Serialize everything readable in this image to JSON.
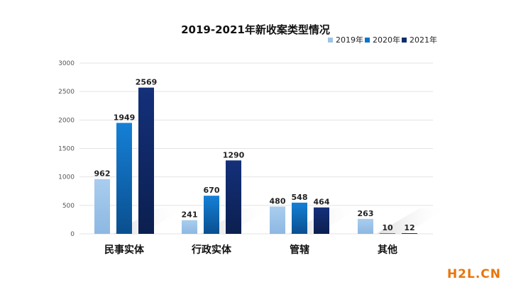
{
  "chart_data": {
    "type": "bar",
    "title": "2019-2021年新收案类型情况",
    "categories": [
      "民事实体",
      "行政实体",
      "管辖",
      "其他"
    ],
    "series": [
      {
        "name": "2019年",
        "values": [
          962,
          241,
          480,
          263
        ],
        "color": "#9dc3e6"
      },
      {
        "name": "2020年",
        "values": [
          1949,
          670,
          548,
          10
        ],
        "color": "#0d74c9"
      },
      {
        "name": "2021年",
        "values": [
          2569,
          1290,
          464,
          12
        ],
        "color": "#0f2d6b"
      }
    ],
    "ylim": [
      0,
      3000
    ],
    "yticks": [
      0,
      500,
      1000,
      1500,
      2000,
      2500,
      3000
    ],
    "xlabel": "",
    "ylabel": "",
    "grid": true,
    "legend": "top-right"
  },
  "watermark": {
    "text": "H2L.CN"
  }
}
